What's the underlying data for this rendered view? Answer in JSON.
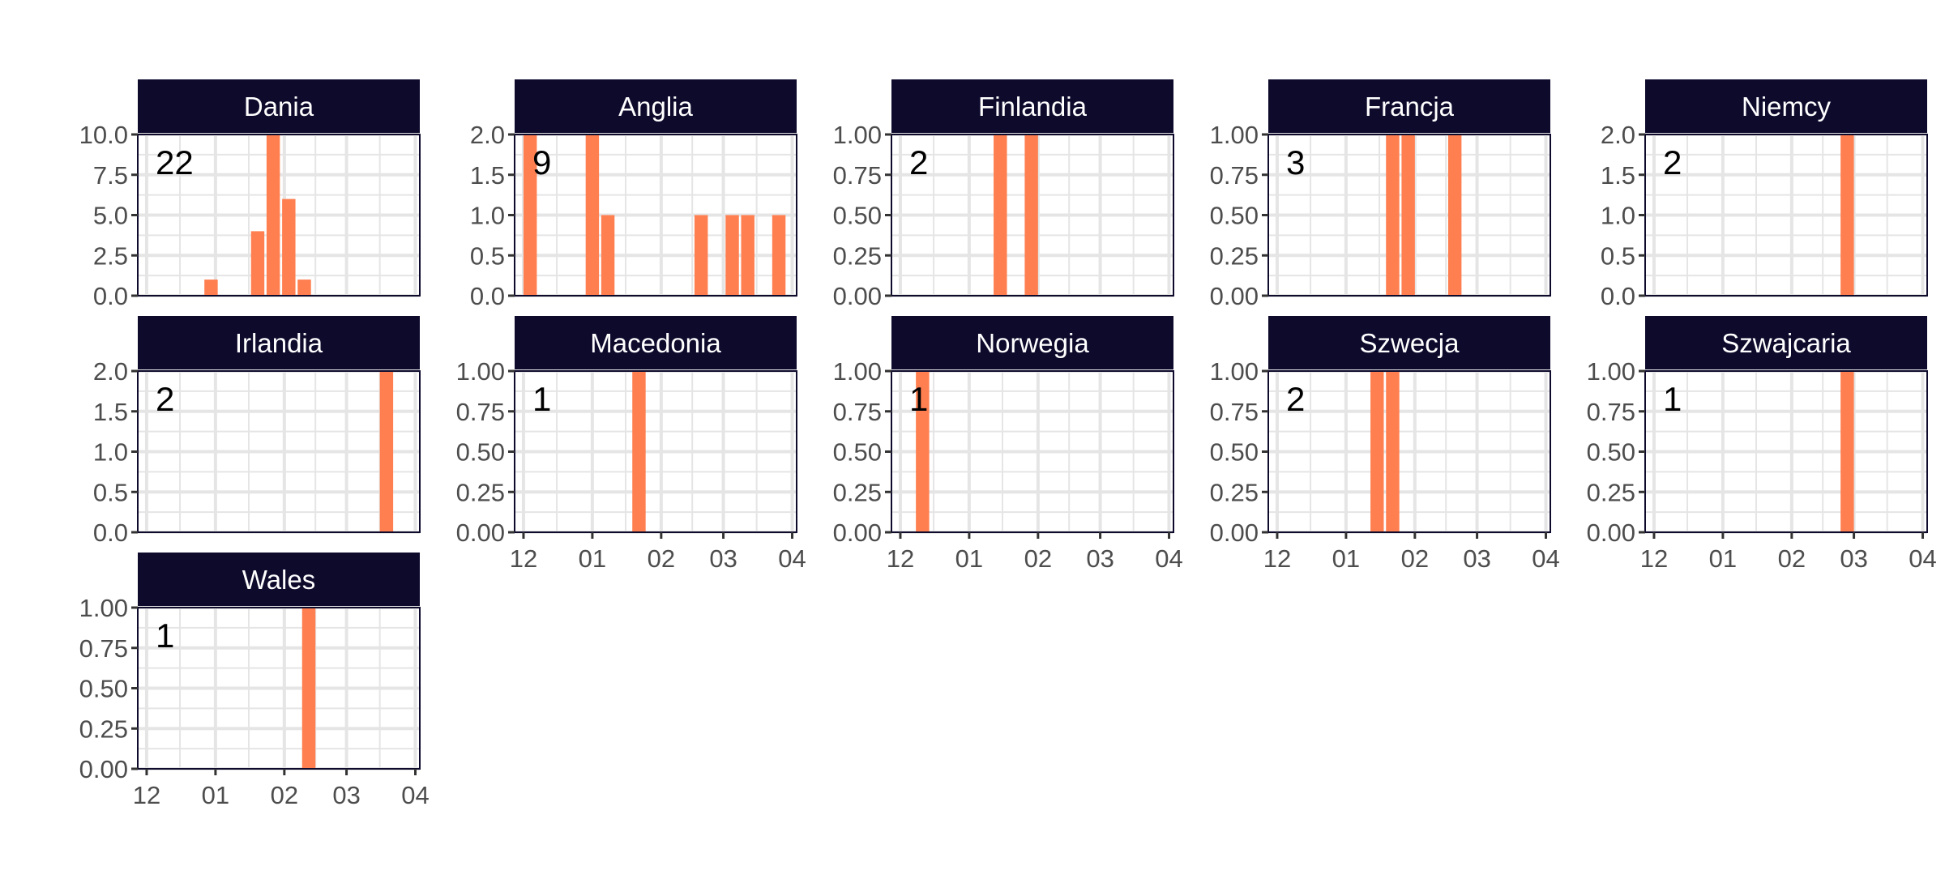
{
  "colors": {
    "strip": "#0d0a2c",
    "strip_text": "#ffffff",
    "bar": "#ff7f50",
    "grid": "#e5e5e5",
    "panel_border": "#0d0a2c",
    "tick_text": "#4d4d4d",
    "count_text": "#000000"
  },
  "chart_data": {
    "type": "bar",
    "facet_layout": "5 columns, 3 rows",
    "x_axis": {
      "type": "date",
      "range": [
        "2021-11-27",
        "2022-04-03"
      ],
      "ticks": [
        {
          "date": "2021-12-01",
          "label": "12"
        },
        {
          "date": "2022-01-01",
          "label": "01"
        },
        {
          "date": "2022-02-01",
          "label": "02"
        },
        {
          "date": "2022-03-01",
          "label": "03"
        },
        {
          "date": "2022-04-01",
          "label": "04"
        }
      ]
    },
    "grid": true,
    "panels": [
      {
        "name": "Dania",
        "total": "22",
        "ylim": [
          0,
          10
        ],
        "yticks": [
          "0.0",
          "2.5",
          "5.0",
          "7.5",
          "10.0"
        ],
        "ytick_values": [
          0,
          2.5,
          5,
          7.5,
          10
        ],
        "bars": [
          {
            "x": "2021-12-30",
            "y": 1
          },
          {
            "x": "2022-01-20",
            "y": 4
          },
          {
            "x": "2022-01-27",
            "y": 10
          },
          {
            "x": "2022-02-03",
            "y": 6
          },
          {
            "x": "2022-02-10",
            "y": 1
          }
        ]
      },
      {
        "name": "Anglia",
        "total": "9",
        "ylim": [
          0,
          2
        ],
        "yticks": [
          "0.0",
          "0.5",
          "1.0",
          "1.5",
          "2.0"
        ],
        "ytick_values": [
          0,
          0.5,
          1,
          1.5,
          2
        ],
        "bars": [
          {
            "x": "2021-12-04",
            "y": 2
          },
          {
            "x": "2022-01-01",
            "y": 2
          },
          {
            "x": "2022-01-08",
            "y": 1
          },
          {
            "x": "2022-02-19",
            "y": 1
          },
          {
            "x": "2022-03-05",
            "y": 1
          },
          {
            "x": "2022-03-12",
            "y": 1
          },
          {
            "x": "2022-03-26",
            "y": 1
          }
        ]
      },
      {
        "name": "Finlandia",
        "total": "2",
        "ylim": [
          0,
          1
        ],
        "yticks": [
          "0.00",
          "0.25",
          "0.50",
          "0.75",
          "1.00"
        ],
        "ytick_values": [
          0,
          0.25,
          0.5,
          0.75,
          1
        ],
        "bars": [
          {
            "x": "2022-01-15",
            "y": 1
          },
          {
            "x": "2022-01-29",
            "y": 1
          }
        ]
      },
      {
        "name": "Francja",
        "total": "3",
        "ylim": [
          0,
          1
        ],
        "yticks": [
          "0.00",
          "0.25",
          "0.50",
          "0.75",
          "1.00"
        ],
        "ytick_values": [
          0,
          0.25,
          0.5,
          0.75,
          1
        ],
        "bars": [
          {
            "x": "2022-01-22",
            "y": 1
          },
          {
            "x": "2022-01-29",
            "y": 1
          },
          {
            "x": "2022-02-19",
            "y": 1
          }
        ]
      },
      {
        "name": "Niemcy",
        "total": "2",
        "ylim": [
          0,
          2
        ],
        "yticks": [
          "0.0",
          "0.5",
          "1.0",
          "1.5",
          "2.0"
        ],
        "ytick_values": [
          0,
          0.5,
          1,
          1.5,
          2
        ],
        "bars": [
          {
            "x": "2022-02-26",
            "y": 2
          }
        ]
      },
      {
        "name": "Irlandia",
        "total": "2",
        "ylim": [
          0,
          2
        ],
        "yticks": [
          "0.0",
          "0.5",
          "1.0",
          "1.5",
          "2.0"
        ],
        "ytick_values": [
          0,
          0.5,
          1,
          1.5,
          2
        ],
        "bars": [
          {
            "x": "2022-03-19",
            "y": 2
          }
        ]
      },
      {
        "name": "Macedonia",
        "total": "1",
        "ylim": [
          0,
          1
        ],
        "yticks": [
          "0.00",
          "0.25",
          "0.50",
          "0.75",
          "1.00"
        ],
        "ytick_values": [
          0,
          0.25,
          0.5,
          0.75,
          1
        ],
        "bars": [
          {
            "x": "2022-01-22",
            "y": 1
          }
        ]
      },
      {
        "name": "Norwegia",
        "total": "1",
        "ylim": [
          0,
          1
        ],
        "yticks": [
          "0.00",
          "0.25",
          "0.50",
          "0.75",
          "1.00"
        ],
        "ytick_values": [
          0,
          0.25,
          0.5,
          0.75,
          1
        ],
        "bars": [
          {
            "x": "2021-12-11",
            "y": 1
          }
        ]
      },
      {
        "name": "Szwecja",
        "total": "2",
        "ylim": [
          0,
          1
        ],
        "yticks": [
          "0.00",
          "0.25",
          "0.50",
          "0.75",
          "1.00"
        ],
        "ytick_values": [
          0,
          0.25,
          0.5,
          0.75,
          1
        ],
        "bars": [
          {
            "x": "2022-01-15",
            "y": 1
          },
          {
            "x": "2022-01-22",
            "y": 1
          }
        ]
      },
      {
        "name": "Szwajcaria",
        "total": "1",
        "ylim": [
          0,
          1
        ],
        "yticks": [
          "0.00",
          "0.25",
          "0.50",
          "0.75",
          "1.00"
        ],
        "ytick_values": [
          0,
          0.25,
          0.5,
          0.75,
          1
        ],
        "bars": [
          {
            "x": "2022-02-26",
            "y": 1
          }
        ]
      },
      {
        "name": "Wales",
        "total": "1",
        "ylim": [
          0,
          1
        ],
        "yticks": [
          "0.00",
          "0.25",
          "0.50",
          "0.75",
          "1.00"
        ],
        "ytick_values": [
          0,
          0.25,
          0.5,
          0.75,
          1
        ],
        "bars": [
          {
            "x": "2022-02-12",
            "y": 1
          }
        ]
      }
    ]
  }
}
